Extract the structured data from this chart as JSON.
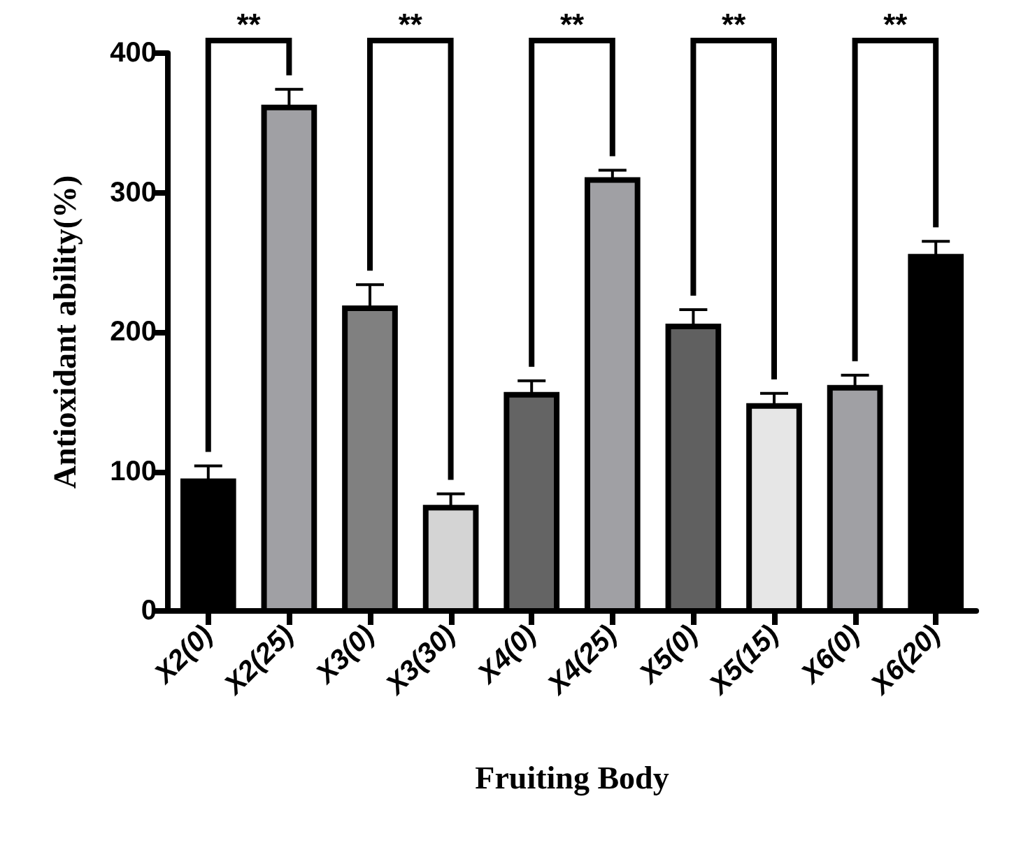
{
  "chart_data": {
    "type": "bar",
    "xlabel": "Fruiting Body",
    "ylabel": "Antioxidant ability(%)",
    "categories": [
      "X2(0)",
      "X2(25)",
      "X3(0)",
      "X3(30)",
      "X4(0)",
      "X4(25)",
      "X5(0)",
      "X5(15)",
      "X6(0)",
      "X6(20)"
    ],
    "values": [
      93,
      361,
      217,
      74,
      155,
      309,
      204,
      147,
      160,
      254
    ],
    "errors": [
      11,
      13,
      17,
      10,
      10,
      7,
      12,
      9,
      9,
      11
    ],
    "colors": [
      "#000000",
      "#a0a0a4",
      "#808080",
      "#d4d4d4",
      "#646464",
      "#a0a0a4",
      "#606060",
      "#e6e6e6",
      "#a0a0a4",
      "#000000"
    ],
    "ylim": [
      0,
      400
    ],
    "yticks": [
      0,
      100,
      200,
      300,
      400
    ],
    "grid": false,
    "annotations": [
      "**",
      "**",
      "**",
      "**",
      "**"
    ]
  }
}
